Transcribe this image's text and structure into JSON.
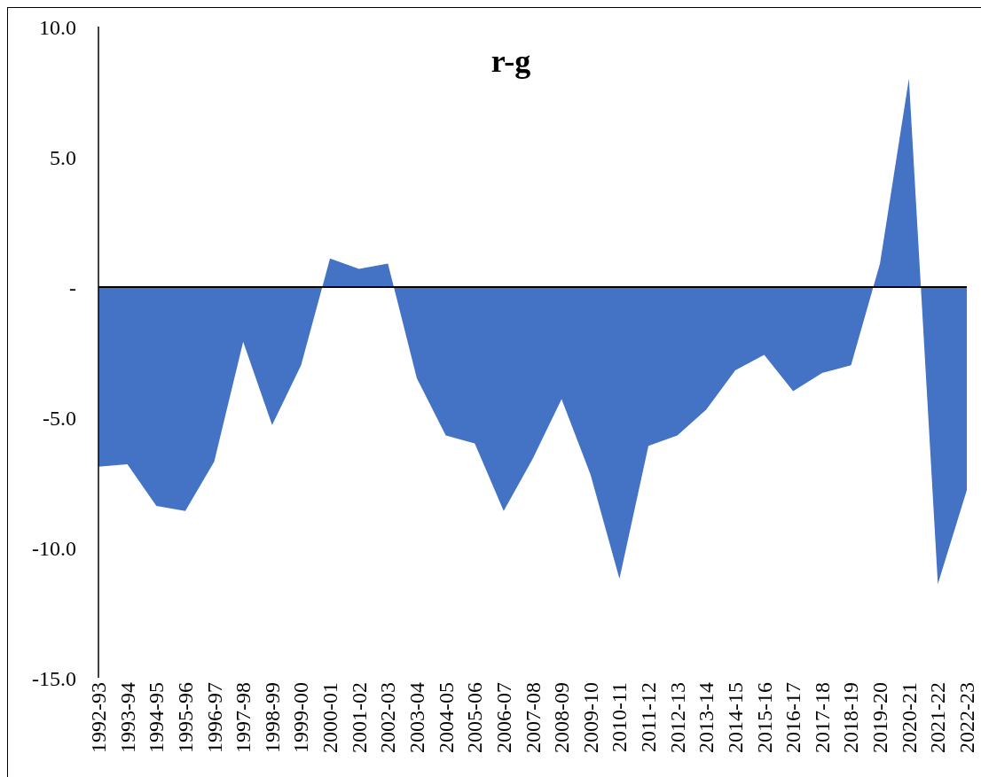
{
  "chart_data": {
    "type": "area",
    "title": "r-g",
    "categories": [
      "1992-93",
      "1993-94",
      "1994-95",
      "1995-96",
      "1996-97",
      "1997-98",
      "1998-99",
      "1999-00",
      "2000-01",
      "2001-02",
      "2002-03",
      "2003-04",
      "2004-05",
      "2005-06",
      "2006-07",
      "2007-08",
      "2008-09",
      "2009-10",
      "2010-11",
      "2011-12",
      "2012-13",
      "2013-14",
      "2014-15",
      "2015-16",
      "2016-17",
      "2017-18",
      "2018-19",
      "2019-20",
      "2020-21",
      "2021-22",
      "2022-23"
    ],
    "values": [
      -6.9,
      -6.8,
      -8.4,
      -8.6,
      -6.7,
      -2.1,
      -5.3,
      -3.0,
      1.1,
      0.7,
      0.9,
      -3.5,
      -5.7,
      -6.0,
      -8.6,
      -6.6,
      -4.3,
      -7.2,
      -11.2,
      -6.1,
      -5.7,
      -4.7,
      -3.2,
      -2.6,
      -4.0,
      -3.3,
      -3.0,
      0.9,
      8.0,
      -11.4,
      -7.8
    ],
    "color": "#4472c4",
    "ylim": [
      -15,
      10
    ],
    "yticks": [
      {
        "value": -15,
        "label": "-15.0"
      },
      {
        "value": -10,
        "label": "-10.0"
      },
      {
        "value": -5,
        "label": "-5.0"
      },
      {
        "value": 0,
        "label": "-"
      },
      {
        "value": 5,
        "label": "5.0"
      },
      {
        "value": 10,
        "label": "10.0"
      }
    ]
  }
}
